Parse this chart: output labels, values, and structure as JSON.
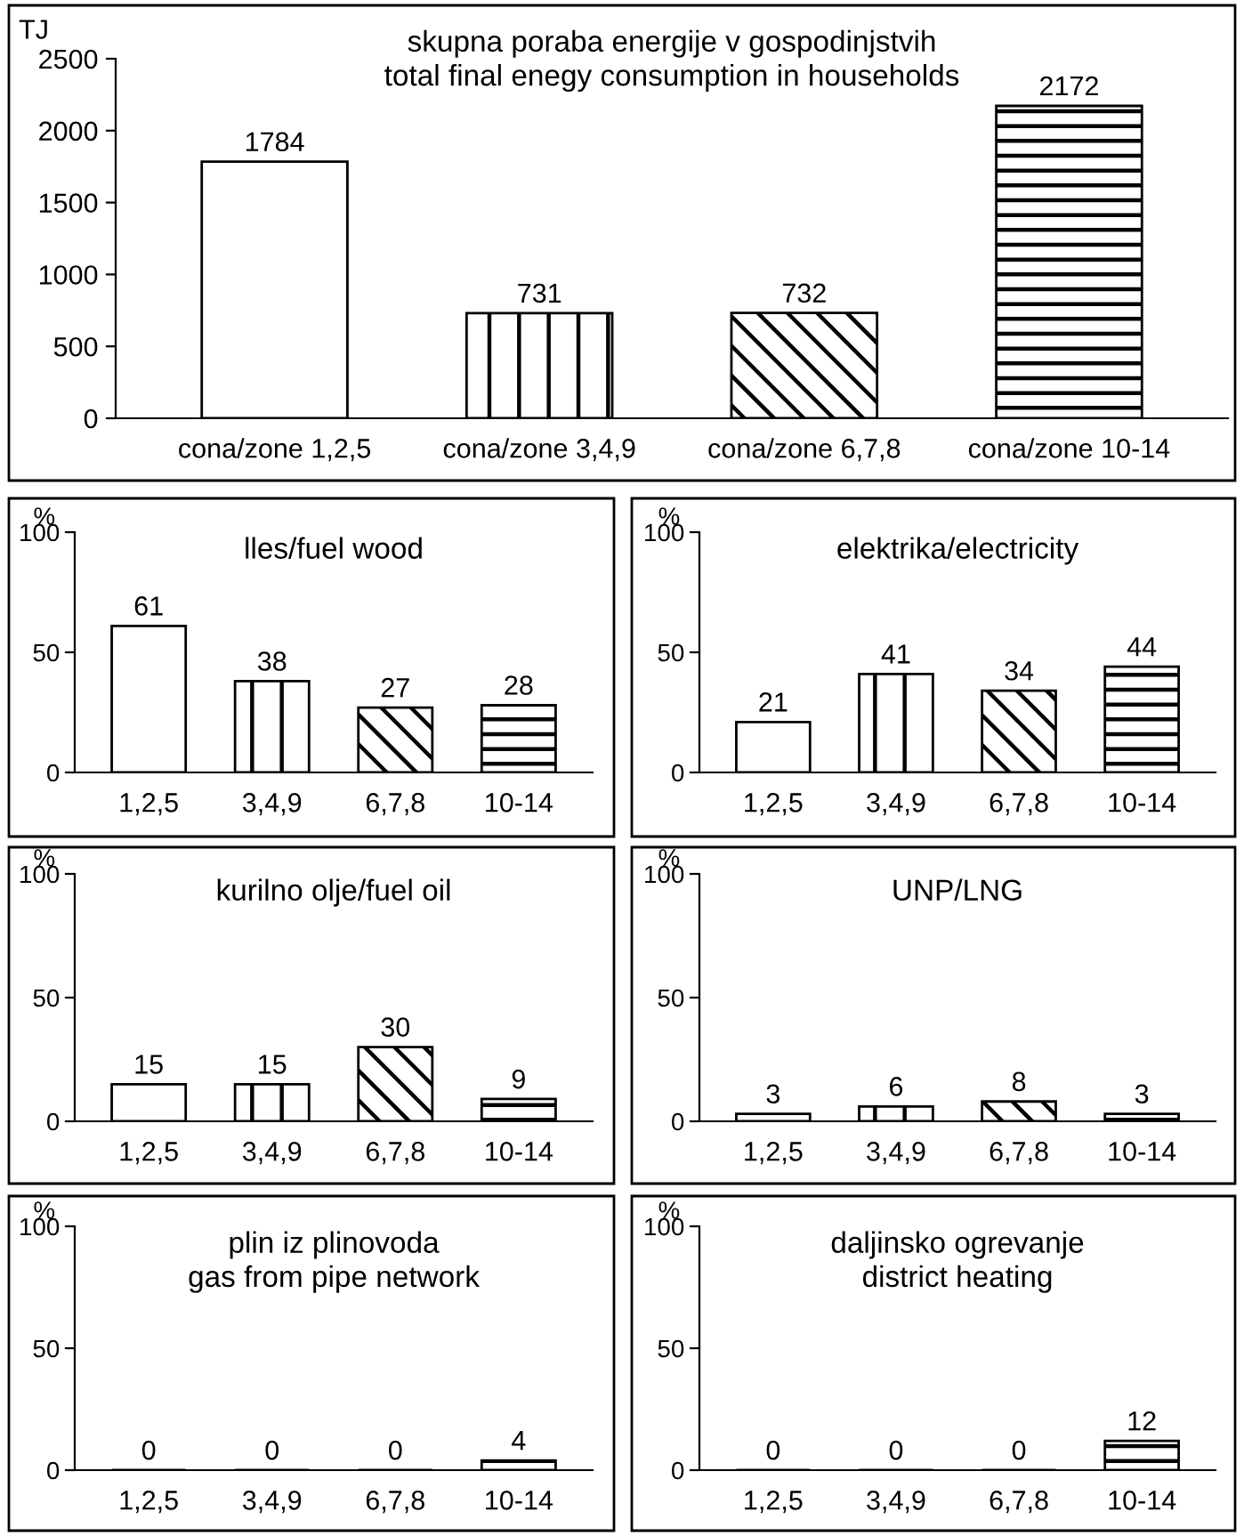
{
  "chart_data": [
    {
      "type": "bar",
      "title": "skupna poraba energije v gospodinjstvih\ntotal final enegy consumption in households",
      "ylabel": "TJ",
      "categories": [
        "cona/zone 1,2,5",
        "cona/zone 3,4,9",
        "cona/zone 6,7,8",
        "cona/zone 10-14"
      ],
      "values": [
        1784,
        731,
        732,
        2172
      ],
      "colors": [
        "#ffffff",
        "#ffffff",
        "#ffffff",
        "#ffffff"
      ],
      "ylim": [
        0,
        2500
      ],
      "yticks": [
        0,
        500,
        1000,
        1500,
        2000,
        2500
      ],
      "data_labels": true
    },
    {
      "type": "bar",
      "title": "lles/fuel wood",
      "ylabel": "%",
      "categories": [
        "1,2,5",
        "3,4,9",
        "6,7,8",
        "10-14"
      ],
      "values": [
        61,
        38,
        27,
        28
      ],
      "colors": [
        "#ffffff",
        "#ffffff",
        "#ffffff",
        "#ffffff"
      ],
      "ylim": [
        0,
        100
      ],
      "yticks": [
        0,
        50,
        100
      ],
      "data_labels": true
    },
    {
      "type": "bar",
      "title": "elektrika/electricity",
      "ylabel": "%",
      "categories": [
        "1,2,5",
        "3,4,9",
        "6,7,8",
        "10-14"
      ],
      "values": [
        21,
        41,
        34,
        44
      ],
      "colors": [
        "#ffffff",
        "#ffffff",
        "#ffffff",
        "#ffffff"
      ],
      "ylim": [
        0,
        100
      ],
      "yticks": [
        0,
        50,
        100
      ],
      "data_labels": true
    },
    {
      "type": "bar",
      "title": "kurilno olje/fuel oil",
      "ylabel": "%",
      "categories": [
        "1,2,5",
        "3,4,9",
        "6,7,8",
        "10-14"
      ],
      "values": [
        15,
        15,
        30,
        9
      ],
      "colors": [
        "#ffffff",
        "#ffffff",
        "#ffffff",
        "#ffffff"
      ],
      "ylim": [
        0,
        100
      ],
      "yticks": [
        0,
        50,
        100
      ],
      "data_labels": true
    },
    {
      "type": "bar",
      "title": "UNP/LNG",
      "ylabel": "%",
      "categories": [
        "1,2,5",
        "3,4,9",
        "6,7,8",
        "10-14"
      ],
      "values": [
        3,
        6,
        8,
        3
      ],
      "colors": [
        "#ffffff",
        "#ffffff",
        "#ffffff",
        "#ffffff"
      ],
      "ylim": [
        0,
        100
      ],
      "yticks": [
        0,
        50,
        100
      ],
      "data_labels": true
    },
    {
      "type": "bar",
      "title": "plin iz plinovoda\ngas from pipe network",
      "ylabel": "%",
      "categories": [
        "1,2,5",
        "3,4,9",
        "6,7,8",
        "10-14"
      ],
      "values": [
        0,
        0,
        0,
        4
      ],
      "colors": [
        "#ffffff",
        "#ffffff",
        "#ffffff",
        "#ffffff"
      ],
      "ylim": [
        0,
        100
      ],
      "yticks": [
        0,
        50,
        100
      ],
      "data_labels": true
    },
    {
      "type": "bar",
      "title": "daljinsko ogrevanje\ndistrict heating",
      "ylabel": "%",
      "categories": [
        "1,2,5",
        "3,4,9",
        "6,7,8",
        "10-14"
      ],
      "values": [
        0,
        0,
        0,
        12
      ],
      "colors": [
        "#ffffff",
        "#ffffff",
        "#ffffff",
        "#ffffff"
      ],
      "ylim": [
        0,
        100
      ],
      "yticks": [
        0,
        50,
        100
      ],
      "data_labels": true
    }
  ]
}
